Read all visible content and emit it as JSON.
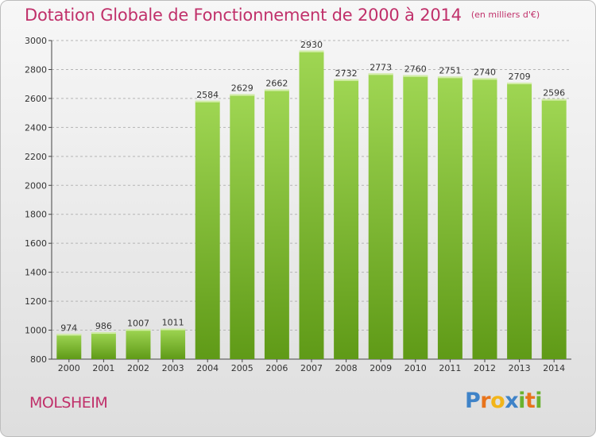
{
  "header": {
    "title": "Dotation Globale de Fonctionnement de 2000 à 2014",
    "unit": "(en milliers d'€)"
  },
  "footer": {
    "commune": "MOLSHEIM",
    "logo_letters": [
      "P",
      "r",
      "o",
      "x",
      "i",
      "t",
      "i"
    ]
  },
  "colors": {
    "title": "#c0306a",
    "bar_top": "#9fd653",
    "bar_bottom": "#5f9a17",
    "logo": [
      "#3f83c8",
      "#e8741c",
      "#f2b51a",
      "#3f83c8",
      "#6ab22f",
      "#e8741c",
      "#6ab22f"
    ]
  },
  "chart_data": {
    "type": "bar",
    "title": "Dotation Globale de Fonctionnement de 2000 à 2014",
    "subtitle": "(en milliers d'€)",
    "categories": [
      "2000",
      "2001",
      "2002",
      "2003",
      "2004",
      "2005",
      "2006",
      "2007",
      "2008",
      "2009",
      "2010",
      "2011",
      "2012",
      "2013",
      "2014"
    ],
    "values": [
      974,
      986,
      1007,
      1011,
      2584,
      2629,
      2662,
      2930,
      2732,
      2773,
      2760,
      2751,
      2740,
      2709,
      2596
    ],
    "ylim": [
      800,
      3000
    ],
    "yticks": [
      800,
      1000,
      1200,
      1400,
      1600,
      1800,
      2000,
      2200,
      2400,
      2600,
      2800,
      3000
    ],
    "grid": true,
    "data_labels": true
  }
}
